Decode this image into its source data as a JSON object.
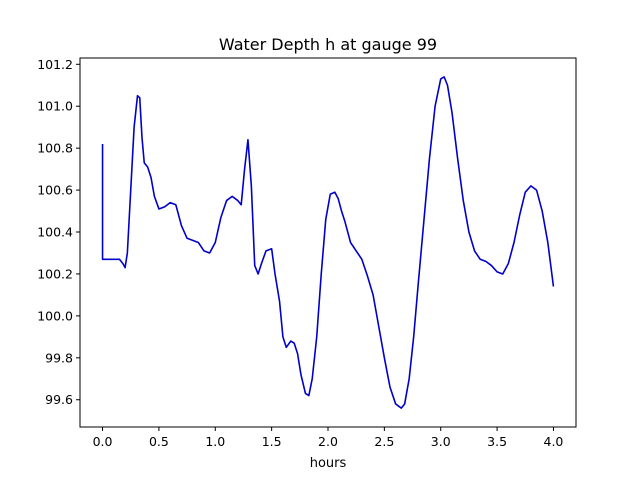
{
  "chart_data": {
    "type": "line",
    "title": "Water Depth h at gauge 99",
    "xlabel": "hours",
    "ylabel": "",
    "xlim": [
      -0.2,
      4.2
    ],
    "ylim": [
      99.47,
      101.23
    ],
    "xticks": [
      0.0,
      0.5,
      1.0,
      1.5,
      2.0,
      2.5,
      3.0,
      3.5,
      4.0
    ],
    "xtick_labels": [
      "0.0",
      "0.5",
      "1.0",
      "1.5",
      "2.0",
      "2.5",
      "3.0",
      "3.5",
      "4.0"
    ],
    "yticks": [
      99.6,
      99.8,
      100.0,
      100.2,
      100.4,
      100.6,
      100.8,
      101.0,
      101.2
    ],
    "ytick_labels": [
      "99.6",
      "99.8",
      "100.0",
      "100.2",
      "100.4",
      "100.6",
      "100.8",
      "101.0",
      "101.2"
    ],
    "grid": false,
    "legend": "none",
    "series": [
      {
        "color": "#0000cc",
        "x": [
          0.0,
          0.0,
          0.05,
          0.1,
          0.15,
          0.18,
          0.2,
          0.22,
          0.25,
          0.28,
          0.31,
          0.33,
          0.35,
          0.37,
          0.4,
          0.43,
          0.46,
          0.5,
          0.55,
          0.6,
          0.65,
          0.7,
          0.75,
          0.8,
          0.85,
          0.9,
          0.95,
          1.0,
          1.05,
          1.1,
          1.15,
          1.2,
          1.23,
          1.26,
          1.29,
          1.32,
          1.35,
          1.38,
          1.41,
          1.45,
          1.5,
          1.53,
          1.57,
          1.6,
          1.63,
          1.67,
          1.7,
          1.73,
          1.76,
          1.8,
          1.83,
          1.86,
          1.9,
          1.94,
          1.98,
          2.02,
          2.06,
          2.09,
          2.12,
          2.15,
          2.2,
          2.25,
          2.3,
          2.35,
          2.4,
          2.45,
          2.5,
          2.55,
          2.6,
          2.65,
          2.68,
          2.72,
          2.76,
          2.8,
          2.85,
          2.9,
          2.95,
          3.0,
          3.03,
          3.06,
          3.1,
          3.15,
          3.2,
          3.25,
          3.3,
          3.35,
          3.4,
          3.45,
          3.5,
          3.55,
          3.6,
          3.65,
          3.7,
          3.75,
          3.8,
          3.85,
          3.9,
          3.95,
          4.0
        ],
        "y": [
          100.82,
          100.27,
          100.27,
          100.27,
          100.27,
          100.25,
          100.23,
          100.3,
          100.6,
          100.9,
          101.05,
          101.04,
          100.85,
          100.73,
          100.71,
          100.66,
          100.57,
          100.51,
          100.52,
          100.54,
          100.53,
          100.43,
          100.37,
          100.36,
          100.35,
          100.31,
          100.3,
          100.35,
          100.47,
          100.55,
          100.57,
          100.55,
          100.53,
          100.7,
          100.84,
          100.62,
          100.24,
          100.2,
          100.25,
          100.31,
          100.32,
          100.2,
          100.07,
          99.9,
          99.85,
          99.88,
          99.87,
          99.82,
          99.72,
          99.63,
          99.62,
          99.7,
          99.9,
          100.2,
          100.46,
          100.58,
          100.59,
          100.56,
          100.5,
          100.45,
          100.35,
          100.31,
          100.27,
          100.19,
          100.1,
          99.95,
          99.8,
          99.66,
          99.58,
          99.56,
          99.58,
          99.7,
          99.9,
          100.15,
          100.45,
          100.75,
          101.0,
          101.13,
          101.14,
          101.1,
          100.97,
          100.75,
          100.55,
          100.4,
          100.31,
          100.27,
          100.26,
          100.24,
          100.21,
          100.2,
          100.25,
          100.35,
          100.48,
          100.59,
          100.62,
          100.6,
          100.5,
          100.35,
          100.14
        ]
      }
    ]
  }
}
